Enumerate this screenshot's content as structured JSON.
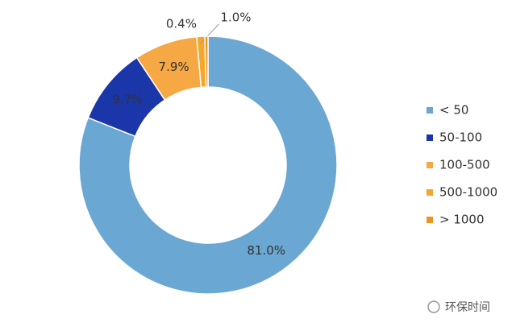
{
  "chart_data": {
    "type": "donut",
    "categories": [
      "< 50",
      "50-100",
      "100-500",
      "500-1000",
      "> 1000"
    ],
    "values": [
      81.0,
      9.7,
      7.9,
      1.0,
      0.4
    ],
    "value_labels": [
      "81.0%",
      "9.7%",
      "7.9%",
      "1.0%",
      "0.4%"
    ],
    "colors": [
      "#6ba7d3",
      "#1b36a8",
      "#f5a843",
      "#f4a72a",
      "#ec9420"
    ],
    "legend": "right",
    "annotations": [
      "环保时间"
    ]
  }
}
